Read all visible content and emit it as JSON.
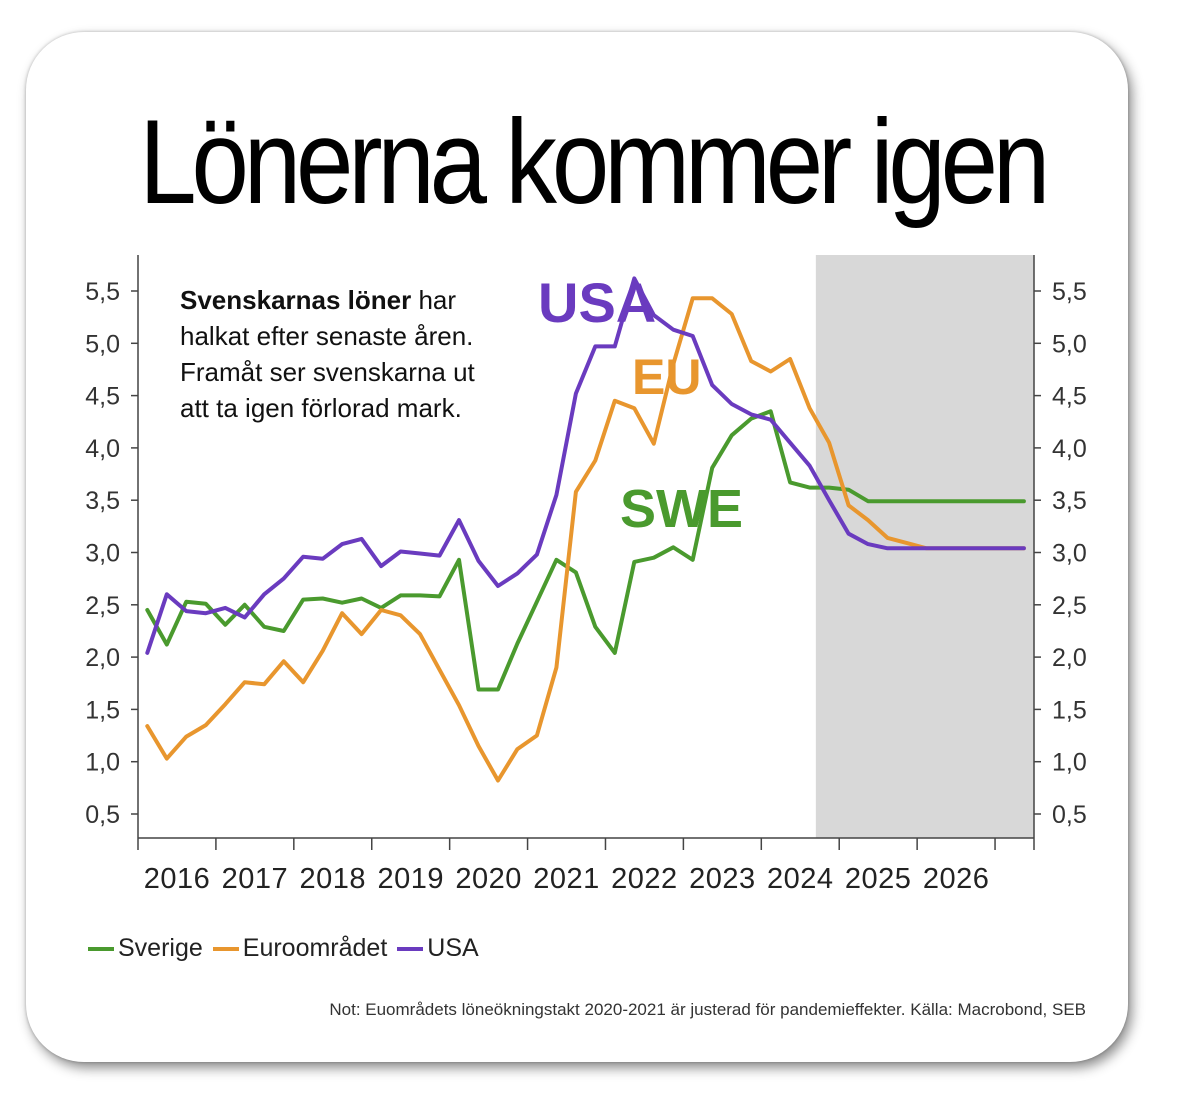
{
  "title": "Lönerna kommer igen",
  "annotation": {
    "bold": "Svenskarnas löner",
    "rest_line1": " har",
    "line2": "halkat efter senaste åren.",
    "line3": "Framåt ser svenskarna ut",
    "line4": "att ta igen förlorad mark."
  },
  "series_labels": {
    "usa": "USA",
    "eu": "EU",
    "swe": "SWE"
  },
  "legend": {
    "sverige": "Sverige",
    "euro": "Euroområdet",
    "usa": "USA"
  },
  "note": "Not: Euområdets löneökningstakt 2020-2021 är justerad för pandemieffekter. Källa: Macrobond, SEB",
  "colors": {
    "sverige": "#4a9a2e",
    "euro": "#e8962e",
    "usa": "#6a3bbf",
    "forecast": "#d8d8d8"
  },
  "chart_data": {
    "type": "line",
    "title": "Lönerna kommer igen",
    "xlabel": "",
    "ylabel": "",
    "ylim": [
      0.3,
      5.8
    ],
    "xlim": [
      2015.3,
      2026.8
    ],
    "forecast_range": [
      2024.0,
      2026.8
    ],
    "y_ticks": [
      "0,5",
      "1,0",
      "1,5",
      "2,0",
      "2,5",
      "3,0",
      "3,5",
      "4,0",
      "4,5",
      "5,0",
      "5,5"
    ],
    "y_tick_values": [
      0.5,
      1.0,
      1.5,
      2.0,
      2.5,
      3.0,
      3.5,
      4.0,
      4.5,
      5.0,
      5.5
    ],
    "x_ticks": [
      "2016",
      "2017",
      "2018",
      "2019",
      "2020",
      "2021",
      "2022",
      "2023",
      "2024",
      "2025",
      "2026"
    ],
    "x_tick_values": [
      2015.75,
      2016.75,
      2017.75,
      2018.75,
      2019.75,
      2020.75,
      2021.75,
      2022.75,
      2023.75,
      2024.75,
      2025.75
    ],
    "year_boundaries": [
      2015.3,
      2016.3,
      2017.3,
      2018.3,
      2019.3,
      2020.3,
      2021.3,
      2022.3,
      2023.3,
      2024.3,
      2025.3,
      2026.3,
      2026.8
    ],
    "series": [
      {
        "name": "Sverige",
        "key": "sverige",
        "x": [
          2015.42,
          2015.67,
          2015.92,
          2016.17,
          2016.42,
          2016.67,
          2016.92,
          2017.17,
          2017.42,
          2017.67,
          2017.92,
          2018.17,
          2018.42,
          2018.67,
          2018.92,
          2019.17,
          2019.42,
          2019.67,
          2019.92,
          2020.17,
          2020.42,
          2020.67,
          2020.92,
          2021.17,
          2021.42,
          2021.67,
          2021.92,
          2022.17,
          2022.42,
          2022.67,
          2022.92,
          2023.17,
          2023.42,
          2023.67,
          2023.92,
          2024.17,
          2024.42,
          2024.67,
          2024.92,
          2025.17,
          2025.42,
          2025.67,
          2025.92,
          2026.17,
          2026.42,
          2026.67
        ],
        "values": [
          2.45,
          2.12,
          2.53,
          2.51,
          2.31,
          2.5,
          2.29,
          2.25,
          2.55,
          2.56,
          2.52,
          2.56,
          2.47,
          2.59,
          2.59,
          2.58,
          2.93,
          1.69,
          1.69,
          2.13,
          2.53,
          2.93,
          2.81,
          2.29,
          2.04,
          2.91,
          2.95,
          3.05,
          2.93,
          3.81,
          4.12,
          4.28,
          4.35,
          3.67,
          3.62,
          3.62,
          3.6,
          3.49,
          3.49,
          3.49,
          3.49,
          3.49,
          3.49,
          3.49,
          3.49,
          3.49
        ]
      },
      {
        "name": "Euroområdet",
        "key": "euro",
        "x": [
          2015.42,
          2015.67,
          2015.92,
          2016.17,
          2016.42,
          2016.67,
          2016.92,
          2017.17,
          2017.42,
          2017.67,
          2017.92,
          2018.17,
          2018.42,
          2018.67,
          2018.92,
          2019.17,
          2019.42,
          2019.67,
          2019.92,
          2020.17,
          2020.42,
          2020.67,
          2020.92,
          2021.17,
          2021.42,
          2021.67,
          2021.92,
          2022.17,
          2022.42,
          2022.67,
          2022.92,
          2023.17,
          2023.42,
          2023.67,
          2023.92,
          2024.17,
          2024.42,
          2024.67,
          2024.92,
          2025.17,
          2025.42,
          2025.67,
          2025.92,
          2026.17,
          2026.42,
          2026.67
        ],
        "values": [
          1.34,
          1.03,
          1.24,
          1.35,
          1.55,
          1.76,
          1.74,
          1.96,
          1.76,
          2.06,
          2.42,
          2.22,
          2.45,
          2.4,
          2.22,
          1.88,
          1.54,
          1.15,
          0.82,
          1.12,
          1.25,
          1.9,
          3.58,
          3.88,
          4.45,
          4.38,
          4.04,
          4.8,
          5.43,
          5.43,
          5.28,
          4.83,
          4.73,
          4.85,
          4.38,
          4.05,
          3.45,
          3.31,
          3.14,
          3.09,
          3.04,
          3.04,
          3.04,
          3.04,
          3.04,
          3.04
        ]
      },
      {
        "name": "USA",
        "key": "usa",
        "x": [
          2015.42,
          2015.67,
          2015.92,
          2016.17,
          2016.42,
          2016.67,
          2016.92,
          2017.17,
          2017.42,
          2017.67,
          2017.92,
          2018.17,
          2018.42,
          2018.67,
          2018.92,
          2019.17,
          2019.42,
          2019.67,
          2019.92,
          2020.17,
          2020.42,
          2020.67,
          2020.92,
          2021.17,
          2021.42,
          2021.67,
          2021.92,
          2022.17,
          2022.42,
          2022.67,
          2022.92,
          2023.17,
          2023.42,
          2023.67,
          2023.92,
          2024.17,
          2024.42,
          2024.67,
          2024.92,
          2025.17,
          2025.42,
          2025.67,
          2025.92,
          2026.17,
          2026.42,
          2026.67
        ],
        "values": [
          2.04,
          2.6,
          2.44,
          2.42,
          2.47,
          2.38,
          2.6,
          2.75,
          2.96,
          2.94,
          3.08,
          3.13,
          2.87,
          3.01,
          2.99,
          2.97,
          3.31,
          2.92,
          2.68,
          2.8,
          2.98,
          3.55,
          4.52,
          4.97,
          4.97,
          5.62,
          5.27,
          5.13,
          5.07,
          4.6,
          4.42,
          4.32,
          4.27,
          4.05,
          3.83,
          3.5,
          3.18,
          3.08,
          3.04,
          3.04,
          3.04,
          3.04,
          3.04,
          3.04,
          3.04,
          3.04
        ]
      }
    ]
  }
}
